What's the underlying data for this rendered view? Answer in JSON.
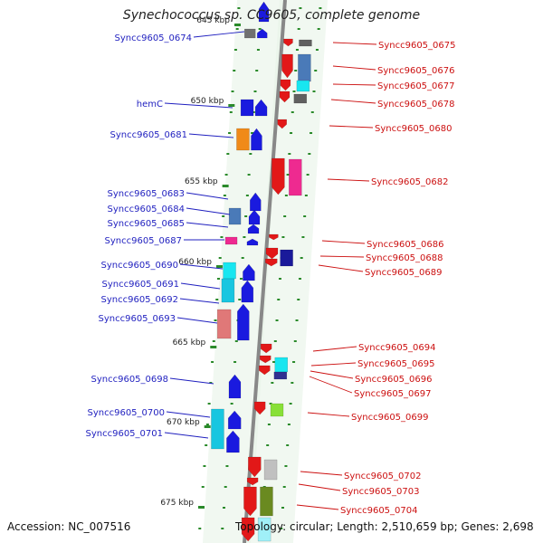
{
  "title": "Synechococcus sp. CC9605, complete genome",
  "footer": {
    "accession": "Accession: NC_007516",
    "topology": "Topology: circular; Length: 2,510,659 bp; Genes: 2,698"
  },
  "colors": {
    "left_label": "#1f1fbf",
    "right_label": "#cc1010",
    "backbone": "#888888",
    "ring_fill": "#e6f3e6",
    "ring_tick": "#2a8a2a"
  },
  "scale_markers": [
    {
      "label": "645 kbp"
    },
    {
      "label": "650 kbp"
    },
    {
      "label": "655 kbp"
    },
    {
      "label": "660 kbp"
    },
    {
      "label": "665 kbp"
    },
    {
      "label": "670 kbp"
    },
    {
      "label": "675 kbp"
    }
  ],
  "left_genes": [
    {
      "label": "Syncc9605_0674"
    },
    {
      "label": "hemC"
    },
    {
      "label": "Syncc9605_0681"
    },
    {
      "label": "Syncc9605_0683"
    },
    {
      "label": "Syncc9605_0684"
    },
    {
      "label": "Syncc9605_0685"
    },
    {
      "label": "Syncc9605_0687"
    },
    {
      "label": "Syncc9605_0690"
    },
    {
      "label": "Syncc9605_0691"
    },
    {
      "label": "Syncc9605_0692"
    },
    {
      "label": "Syncc9605_0693"
    },
    {
      "label": "Syncc9605_0698"
    },
    {
      "label": "Syncc9605_0700"
    },
    {
      "label": "Syncc9605_0701"
    }
  ],
  "right_genes": [
    {
      "label": "Syncc9605_0675"
    },
    {
      "label": "Syncc9605_0676"
    },
    {
      "label": "Syncc9605_0677"
    },
    {
      "label": "Syncc9605_0678"
    },
    {
      "label": "Syncc9605_0680"
    },
    {
      "label": "Syncc9605_0682"
    },
    {
      "label": "Syncc9605_0686"
    },
    {
      "label": "Syncc9605_0688"
    },
    {
      "label": "Syncc9605_0689"
    },
    {
      "label": "Syncc9605_0694"
    },
    {
      "label": "Syncc9605_0695"
    },
    {
      "label": "Syncc9605_0696"
    },
    {
      "label": "Syncc9605_0697"
    },
    {
      "label": "Syncc9605_0699"
    },
    {
      "label": "Syncc9605_0702"
    },
    {
      "label": "Syncc9605_0703"
    },
    {
      "label": "Syncc9605_0704"
    }
  ]
}
